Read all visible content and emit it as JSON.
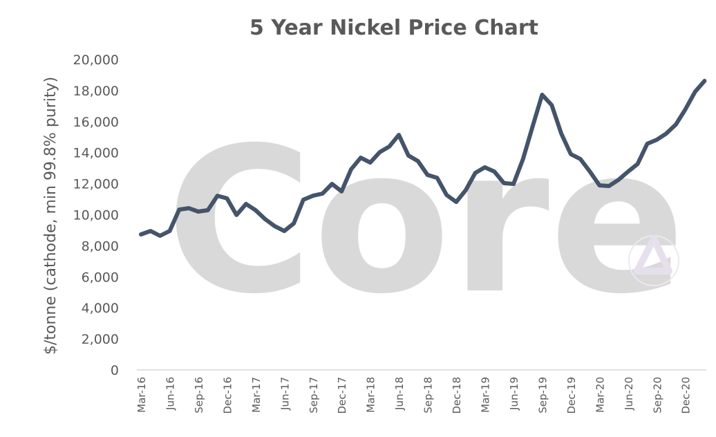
{
  "chart_data": {
    "type": "line",
    "title": "5 Year Nickel Price Chart",
    "xlabel": "",
    "ylabel": "$/tonne (cathode, min 99.8% purity)",
    "ylim": [
      0,
      20000
    ],
    "yticks": [
      0,
      2000,
      4000,
      6000,
      8000,
      10000,
      12000,
      14000,
      16000,
      18000,
      20000
    ],
    "ytick_labels": [
      "0",
      "2,000",
      "4,000",
      "6,000",
      "8,000",
      "10,000",
      "12,000",
      "14,000",
      "16,000",
      "18,000",
      "20,000"
    ],
    "xtick_labels": [
      "Mar-16",
      "Jun-16",
      "Sep-16",
      "Dec-16",
      "Mar-17",
      "Jun-17",
      "Sep-17",
      "Dec-17",
      "Mar-18",
      "Jun-18",
      "Sep-18",
      "Dec-18",
      "Mar-19",
      "Jun-19",
      "Sep-19",
      "Dec-19",
      "Mar-20",
      "Jun-20",
      "Sep-20",
      "Dec-20"
    ],
    "x_start": "Mar-16",
    "x_end": "Feb-21",
    "grid": false,
    "line_color": "#44546a",
    "watermark": "Core",
    "series": [
      {
        "values": [
          8730,
          8950,
          8640,
          8950,
          10330,
          10420,
          10200,
          10290,
          11220,
          11050,
          9980,
          10690,
          10290,
          9710,
          9260,
          8950,
          9440,
          10960,
          11220,
          11360,
          11980,
          11500,
          12920,
          13670,
          13360,
          14030,
          14390,
          15140,
          13810,
          13450,
          12560,
          12380,
          11270,
          10820,
          11580,
          12690,
          13050,
          12780,
          12030,
          11980,
          13590,
          15680,
          17730,
          17060,
          15230,
          13900,
          13590,
          12780,
          11890,
          11850,
          12250,
          12780,
          13270,
          14570,
          14830,
          15230,
          15810,
          16790,
          17910,
          18620
        ]
      }
    ]
  }
}
